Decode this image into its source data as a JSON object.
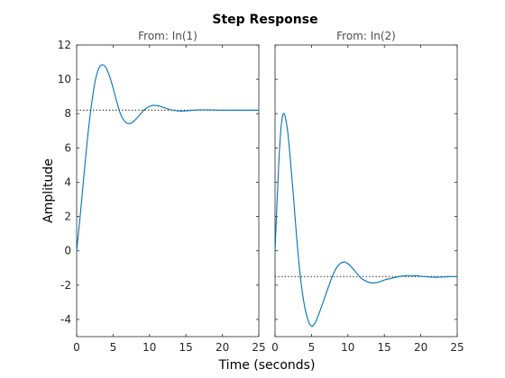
{
  "figure": {
    "title": "Step Response",
    "xlabel": "Time (seconds)",
    "ylabel": "Amplitude",
    "line_color": "#0072bd"
  },
  "chart_data": [
    {
      "type": "line",
      "title": "From: In(1)",
      "xlim": [
        0,
        25
      ],
      "ylim": [
        -5,
        12
      ],
      "xticks": [
        0,
        5,
        10,
        15,
        20,
        25
      ],
      "yticks": [
        -4,
        -2,
        0,
        2,
        4,
        6,
        8,
        10,
        12
      ],
      "steady_state": 8.2,
      "grid": false,
      "x": [
        0,
        0.5,
        1,
        1.5,
        2,
        2.5,
        3,
        3.5,
        4,
        4.5,
        5,
        5.5,
        6,
        6.5,
        7,
        7.5,
        8,
        8.5,
        9,
        9.5,
        10,
        10.5,
        11,
        11.5,
        12,
        12.5,
        13,
        14,
        15,
        16,
        17,
        18,
        19,
        20,
        21,
        22,
        23,
        24,
        25
      ],
      "y": [
        0,
        2.1,
        4.4,
        6.6,
        8.4,
        9.8,
        10.6,
        10.85,
        10.7,
        10.2,
        9.5,
        8.7,
        8.0,
        7.6,
        7.42,
        7.45,
        7.62,
        7.85,
        8.1,
        8.3,
        8.42,
        8.48,
        8.47,
        8.42,
        8.35,
        8.28,
        8.22,
        8.15,
        8.16,
        8.2,
        8.22,
        8.22,
        8.21,
        8.2,
        8.2,
        8.2,
        8.2,
        8.2,
        8.2
      ]
    },
    {
      "type": "line",
      "title": "From: In(2)",
      "xlim": [
        0,
        25
      ],
      "ylim": [
        -5,
        12
      ],
      "xticks": [
        0,
        5,
        10,
        15,
        20,
        25
      ],
      "yticks": [
        -4,
        -2,
        0,
        2,
        4,
        6,
        8,
        10,
        12
      ],
      "steady_state": -1.5,
      "grid": false,
      "x": [
        0,
        0.25,
        0.5,
        0.75,
        1,
        1.25,
        1.5,
        1.75,
        2,
        2.5,
        3,
        3.5,
        4,
        4.5,
        5,
        5.5,
        6,
        6.5,
        7,
        7.5,
        8,
        8.5,
        9,
        9.5,
        10,
        10.5,
        11,
        11.5,
        12,
        13,
        14,
        15,
        16,
        17,
        18,
        19,
        20,
        21,
        22,
        23,
        24,
        25
      ],
      "y": [
        0,
        2.6,
        5.0,
        6.8,
        7.8,
        8.0,
        7.6,
        6.9,
        5.8,
        3.3,
        0.6,
        -1.6,
        -3.1,
        -4.0,
        -4.4,
        -4.2,
        -3.7,
        -3.1,
        -2.5,
        -1.9,
        -1.35,
        -0.95,
        -0.72,
        -0.65,
        -0.75,
        -0.95,
        -1.2,
        -1.45,
        -1.65,
        -1.85,
        -1.85,
        -1.7,
        -1.6,
        -1.5,
        -1.45,
        -1.45,
        -1.48,
        -1.52,
        -1.54,
        -1.53,
        -1.5,
        -1.5
      ]
    }
  ]
}
